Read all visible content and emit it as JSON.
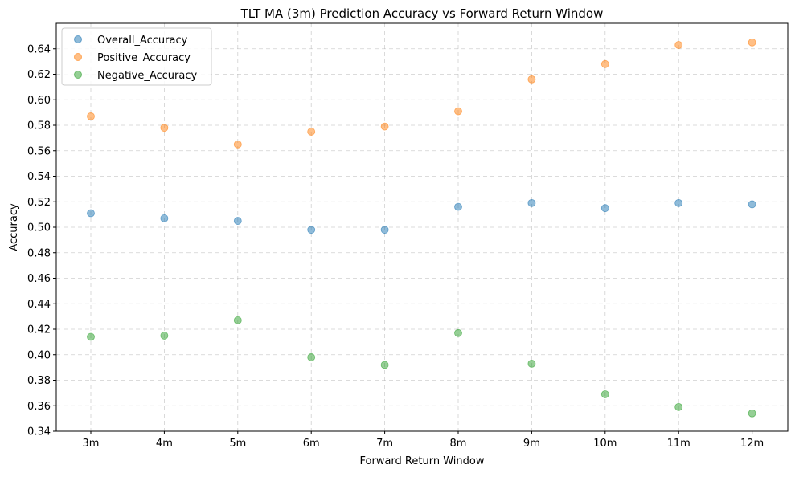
{
  "chart_data": {
    "type": "scatter",
    "title": "TLT MA (3m) Prediction Accuracy vs Forward Return Window",
    "xlabel": "Forward Return Window",
    "ylabel": "Accuracy",
    "categories": [
      "3m",
      "4m",
      "5m",
      "6m",
      "7m",
      "8m",
      "9m",
      "10m",
      "11m",
      "12m"
    ],
    "ylim": [
      0.34,
      0.66
    ],
    "yticks": [
      "0.34",
      "0.36",
      "0.38",
      "0.40",
      "0.42",
      "0.44",
      "0.46",
      "0.48",
      "0.50",
      "0.52",
      "0.54",
      "0.56",
      "0.58",
      "0.60",
      "0.62",
      "0.64"
    ],
    "grid": true,
    "grid_style": "dashed",
    "legend_position": "top-left",
    "series": [
      {
        "name": "Overall_Accuracy",
        "color": "#1f77b4",
        "values": [
          0.511,
          0.507,
          0.505,
          0.498,
          0.498,
          0.516,
          0.519,
          0.515,
          0.519,
          0.518
        ]
      },
      {
        "name": "Positive_Accuracy",
        "color": "#ff7f0e",
        "values": [
          0.587,
          0.578,
          0.565,
          0.575,
          0.579,
          0.591,
          0.616,
          0.628,
          0.643,
          0.645
        ]
      },
      {
        "name": "Negative_Accuracy",
        "color": "#2ca02c",
        "values": [
          0.414,
          0.415,
          0.427,
          0.398,
          0.392,
          0.417,
          0.393,
          0.369,
          0.359,
          0.354
        ]
      }
    ]
  }
}
